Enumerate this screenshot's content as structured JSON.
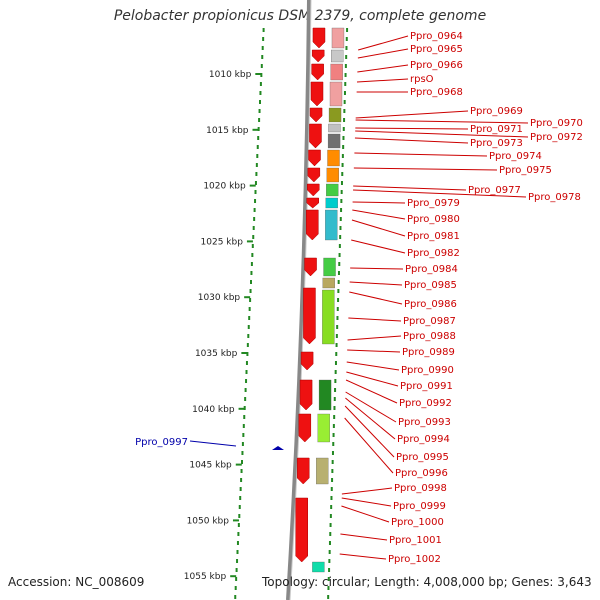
{
  "title": "Pelobacter propionicus DSM 2379, complete genome",
  "accession": "Accession: NC_008609",
  "topology": "Topology: circular; Length: 4,008,000 bp; Genes: 3,643",
  "colors": {
    "label_red": "#cc0000",
    "label_blue": "#0000aa",
    "gene_red": "#ee1111",
    "axis_green": "#228822",
    "backbone": "#888888"
  },
  "kbp_ticks": [
    "1010 kbp",
    "1015 kbp",
    "1020 kbp",
    "1025 kbp",
    "1030 kbp",
    "1035 kbp",
    "1040 kbp",
    "1045 kbp",
    "1050 kbp",
    "1055 kbp"
  ],
  "left_labels": [
    "Ppro_0997"
  ],
  "right_labels": [
    "Ppro_0964",
    "Ppro_0965",
    "Ppro_0966",
    "rpsO",
    "Ppro_0968",
    "Ppro_0969",
    "Ppro_0970",
    "Ppro_0971",
    "Ppro_0972",
    "Ppro_0973",
    "Ppro_0974",
    "Ppro_0975",
    "Ppro_0977",
    "Ppro_0978",
    "Ppro_0979",
    "Ppro_0980",
    "Ppro_0981",
    "Ppro_0982",
    "Ppro_0984",
    "Ppro_0985",
    "Ppro_0986",
    "Ppro_0987",
    "Ppro_0988",
    "Ppro_0989",
    "Ppro_0990",
    "Ppro_0991",
    "Ppro_0992",
    "Ppro_0993",
    "Ppro_0994",
    "Ppro_0995",
    "Ppro_0996",
    "Ppro_0998",
    "Ppro_0999",
    "Ppro_1000",
    "Ppro_1001",
    "Ppro_1002"
  ]
}
